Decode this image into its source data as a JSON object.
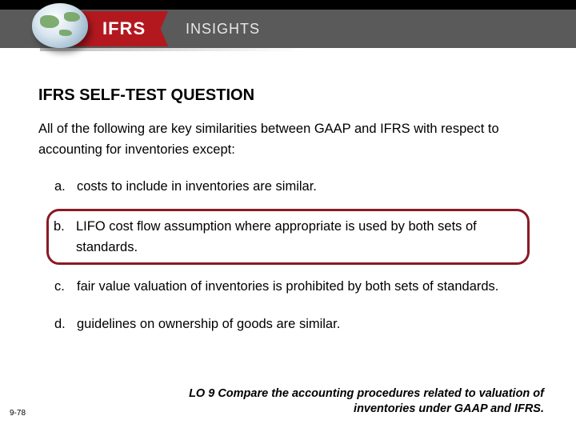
{
  "header": {
    "badge": "IFRS",
    "subtitle": "INSIGHTS"
  },
  "title": "IFRS SELF-TEST QUESTION",
  "question": "All of the following are key similarities between GAAP and IFRS with respect to accounting for inventories except:",
  "options": [
    {
      "letter": "a.",
      "text": "costs to include in inventories are similar.",
      "highlighted": false
    },
    {
      "letter": "b.",
      "text": "LIFO cost flow assumption where appropriate is used by both sets of standards.",
      "highlighted": true
    },
    {
      "letter": "c.",
      "text": "fair value valuation of inventories is prohibited by both sets of standards.",
      "highlighted": false
    },
    {
      "letter": "d.",
      "text": "guidelines on ownership of goods are similar.",
      "highlighted": false
    }
  ],
  "footer": {
    "page": "9-78",
    "lo": "LO 9 Compare the accounting procedures related to valuation of inventories under GAAP and IFRS."
  },
  "colors": {
    "badge_bg": "#b4181f",
    "header_bg": "#5a5a5a",
    "highlight_border": "#8a1a26"
  }
}
